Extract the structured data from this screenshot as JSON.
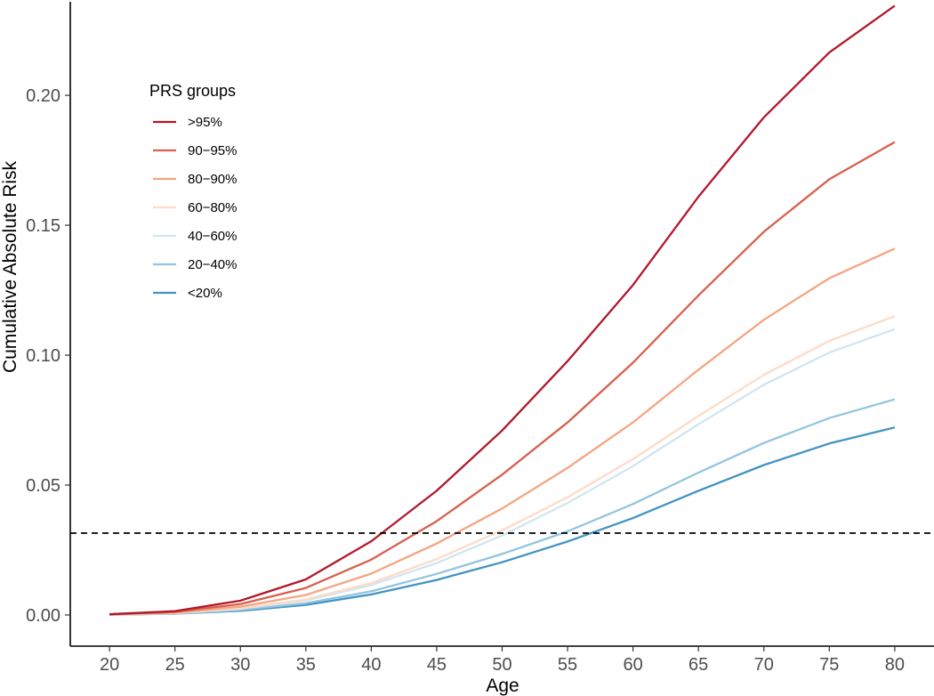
{
  "chart_data": {
    "type": "line",
    "xlabel": "Age",
    "ylabel": "Cumulative Absolute Risk",
    "x": [
      20,
      25,
      30,
      35,
      40,
      45,
      50,
      55,
      60,
      65,
      70,
      75,
      80
    ],
    "xticks": [
      "20",
      "25",
      "30",
      "35",
      "40",
      "45",
      "50",
      "55",
      "60",
      "65",
      "70",
      "75",
      "80"
    ],
    "yticks": [
      "0.00",
      "0.05",
      "0.10",
      "0.15",
      "0.20"
    ],
    "ytick_values": [
      0.0,
      0.05,
      0.1,
      0.15,
      0.2
    ],
    "xlim": [
      17,
      83
    ],
    "ylim": [
      -0.012,
      0.236
    ],
    "grid": false,
    "legend_position": "top-left",
    "legend_title": "PRS groups",
    "reference_line": {
      "y": 0.0315,
      "style": "dashed",
      "color": "#000000"
    },
    "series": [
      {
        "name": ">95%",
        "color": "#b2182b",
        "values": [
          0.0003,
          0.0015,
          0.0055,
          0.0137,
          0.0284,
          0.0478,
          0.071,
          0.0977,
          0.127,
          0.161,
          0.1915,
          0.2165,
          0.2345
        ]
      },
      {
        "name": "90−95%",
        "color": "#d6604d",
        "values": [
          0.0003,
          0.0012,
          0.0042,
          0.0104,
          0.0213,
          0.0361,
          0.054,
          0.0741,
          0.0971,
          0.123,
          0.1475,
          0.1677,
          0.182
        ]
      },
      {
        "name": "80−90%",
        "color": "#f4a582",
        "values": [
          0.0002,
          0.0009,
          0.0032,
          0.0077,
          0.0159,
          0.0275,
          0.041,
          0.0566,
          0.0741,
          0.0944,
          0.1136,
          0.1296,
          0.141
        ]
      },
      {
        "name": "60−80%",
        "color": "#fddbc7",
        "values": [
          0.0002,
          0.0007,
          0.0026,
          0.006,
          0.0123,
          0.0215,
          0.0326,
          0.0453,
          0.06,
          0.0766,
          0.0924,
          0.1055,
          0.115
        ]
      },
      {
        "name": "40−60%",
        "color": "#d1e5f0",
        "values": [
          0.0002,
          0.0007,
          0.0024,
          0.0056,
          0.0115,
          0.02,
          0.0306,
          0.0431,
          0.0573,
          0.0734,
          0.0886,
          0.101,
          0.11
        ]
      },
      {
        "name": "20−40%",
        "color": "#92c5de",
        "values": [
          0.0001,
          0.0005,
          0.0019,
          0.0045,
          0.0091,
          0.0158,
          0.0235,
          0.0322,
          0.0427,
          0.0548,
          0.0662,
          0.0758,
          0.083
        ]
      },
      {
        "name": "<20%",
        "color": "#4393c3",
        "values": [
          0.0001,
          0.0005,
          0.0016,
          0.0039,
          0.0079,
          0.0135,
          0.0203,
          0.0283,
          0.0373,
          0.0478,
          0.0577,
          0.066,
          0.0722
        ]
      }
    ]
  }
}
